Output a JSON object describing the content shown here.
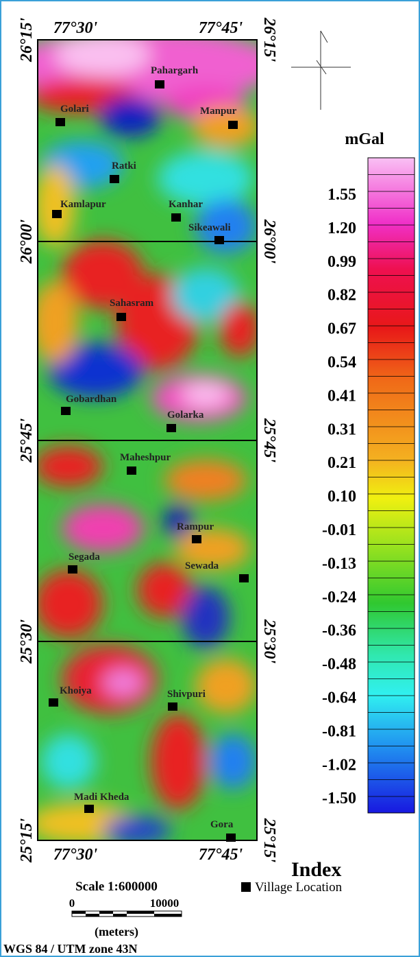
{
  "coordinates": {
    "top": [
      "77°30'",
      "77°45'"
    ],
    "bottom": [
      "77°30'",
      "77°45'"
    ],
    "left": [
      "26°15'",
      "26°00'",
      "25°45'",
      "25°30'",
      "25°15'"
    ],
    "right": [
      "26°15'",
      "26°00'",
      "25°45'",
      "25°30'",
      "25°15'"
    ]
  },
  "villages": [
    "Pahargarh",
    "Golari",
    "Manpur",
    "Ratki",
    "Kamlapur",
    "Kanhar",
    "Sikeawali",
    "Sahasram",
    "Gobardhan",
    "Golarka",
    "Maheshpur",
    "Rampur",
    "Segada",
    "Sewada",
    "Khoiya",
    "Shivpuri",
    "Madi Kheda",
    "Gora"
  ],
  "legend": {
    "unit": "mGal",
    "labels": [
      "1.55",
      "1.20",
      "0.99",
      "0.82",
      "0.67",
      "0.54",
      "0.41",
      "0.31",
      "0.21",
      "0.10",
      "-0.01",
      "-0.13",
      "-0.24",
      "-0.36",
      "-0.48",
      "-0.64",
      "-0.81",
      "-1.02",
      "-1.50"
    ]
  },
  "index": {
    "title": "Index",
    "item": "Village Location"
  },
  "scale": {
    "title": "Scale 1:600000",
    "start": "0",
    "end": "10000",
    "unit": "(meters)"
  },
  "projection": "WGS 84 / UTM zone 43N"
}
